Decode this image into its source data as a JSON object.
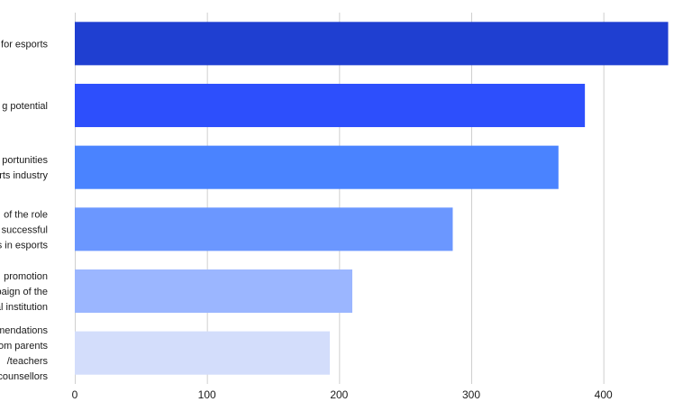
{
  "chart_data": {
    "type": "bar",
    "orientation": "horizontal",
    "categories": [
      [
        "for esports"
      ],
      [
        "g potential"
      ],
      [
        "portunities",
        "rts industry"
      ],
      [
        "of the role",
        "successful",
        "s in esports"
      ],
      [
        "promotion",
        "paign of the",
        "al institution"
      ],
      [
        "mendations",
        "om parents",
        "/teachers",
        "counsellors"
      ]
    ],
    "values": [
      449,
      386,
      366,
      286,
      210,
      193
    ],
    "colors": [
      "#1f3fd1",
      "#2d4ffc",
      "#4a83ff",
      "#6b97ff",
      "#9bb6ff",
      "#d3ddfb"
    ],
    "xlim": [
      0,
      450
    ],
    "xticks": [
      0,
      100,
      200,
      300,
      400
    ],
    "grid": "vertical",
    "title": "",
    "xlabel": "",
    "ylabel": ""
  }
}
